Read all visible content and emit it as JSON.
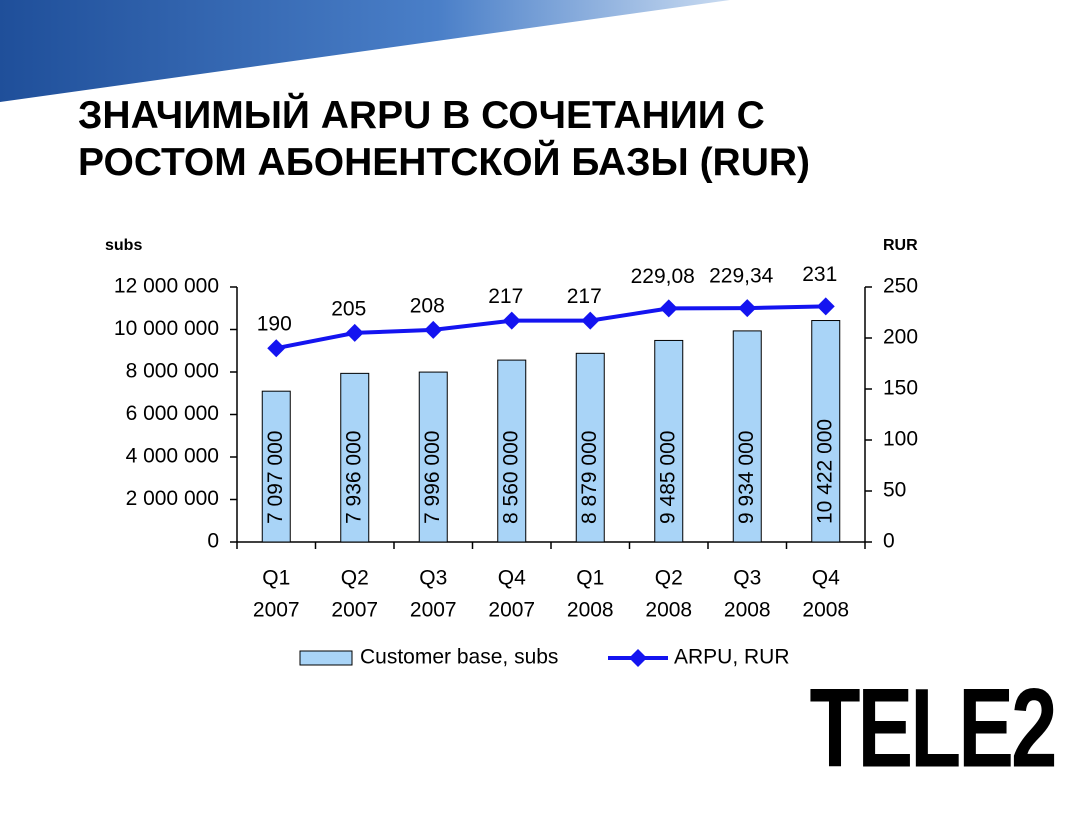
{
  "chart_data": {
    "type": "bar",
    "title": "ЗНАЧИМЫЙ ARPU В СОЧЕТАНИИ С РОСТОМ АБОНЕНТСКОЙ БАЗЫ (RUR)",
    "y_label": "subs",
    "y2_label": "RUR",
    "categories": [
      [
        "Q1",
        "2007"
      ],
      [
        "Q2",
        "2007"
      ],
      [
        "Q3",
        "2007"
      ],
      [
        "Q4",
        "2007"
      ],
      [
        "Q1",
        "2008"
      ],
      [
        "Q2",
        "2008"
      ],
      [
        "Q3",
        "2008"
      ],
      [
        "Q4",
        "2008"
      ]
    ],
    "series": [
      {
        "name": "Customer base, subs",
        "type": "bar",
        "color": "#a9d4f7",
        "values": [
          7097000,
          7936000,
          7996000,
          8560000,
          8879000,
          9485000,
          9934000,
          10422000
        ],
        "value_labels": [
          "7 097 000",
          "7 936 000",
          "7 996 000",
          "8 560 000",
          "8 879 000",
          "9 485 000",
          "9 934 000",
          "10 422 000"
        ]
      },
      {
        "name": "ARPU, RUR",
        "type": "line",
        "axis": "y2",
        "color": "#1414f0",
        "values": [
          190,
          205,
          208,
          217,
          217,
          229.08,
          229.34,
          231
        ],
        "value_labels": [
          "190",
          "205",
          "208",
          "217",
          "217",
          "229,08",
          "229,34",
          "231"
        ]
      }
    ],
    "ylim": [
      0,
      12000000
    ],
    "yticks": [
      0,
      {
        "value": 2000000,
        "label": "2 000 000"
      },
      {
        "value": 4000000,
        "label": "4 000 000"
      },
      {
        "value": 6000000,
        "label": "6 000 000"
      },
      {
        "value": 8000000,
        "label": "8 000 000"
      },
      {
        "value": 10000000,
        "label": "10 000 000"
      },
      {
        "value": 12000000,
        "label": "12 000 000"
      }
    ],
    "y2lim": [
      0,
      250
    ],
    "y2ticks": [
      0,
      50,
      100,
      150,
      200,
      250
    ],
    "grid": false,
    "legend": "bottom"
  },
  "logo": "TELE2"
}
